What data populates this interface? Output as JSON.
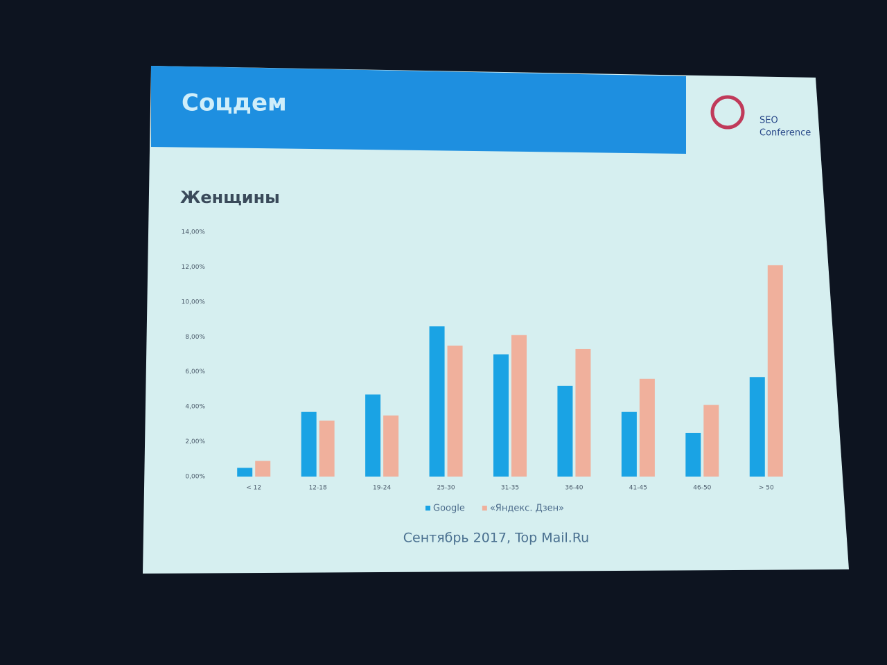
{
  "header": {
    "title": "Соцдем",
    "logo": [
      "SEO",
      "Conference"
    ]
  },
  "chart_data": {
    "type": "bar",
    "title": "Женщины",
    "categories": [
      "< 12",
      "12-18",
      "19-24",
      "25-30",
      "31-35",
      "36-40",
      "41-45",
      "46-50",
      "> 50"
    ],
    "series": [
      {
        "name": "Google",
        "color": "#1aa3e4",
        "values": [
          0.5,
          3.7,
          4.7,
          8.6,
          7.0,
          5.2,
          3.7,
          2.5,
          5.7
        ]
      },
      {
        "name": "«Яндекс. Дзен»",
        "color": "#f0b09c",
        "values": [
          0.9,
          3.2,
          3.5,
          7.5,
          8.1,
          7.3,
          5.6,
          4.1,
          12.1
        ]
      }
    ],
    "ylim": [
      0,
      14
    ],
    "yticks": [
      {
        "value": 0,
        "label": "0,00%"
      },
      {
        "value": 2,
        "label": "2,00%"
      },
      {
        "value": 4,
        "label": "4,00%"
      },
      {
        "value": 6,
        "label": "6,00%"
      },
      {
        "value": 8,
        "label": "8,00%"
      },
      {
        "value": 10,
        "label": "10,00%"
      },
      {
        "value": 12,
        "label": "12,00%"
      },
      {
        "value": 14,
        "label": "14,00%"
      }
    ],
    "grid": false,
    "legend": "bottom"
  },
  "footer": "Сентябрь 2017, Top Mail.Ru"
}
